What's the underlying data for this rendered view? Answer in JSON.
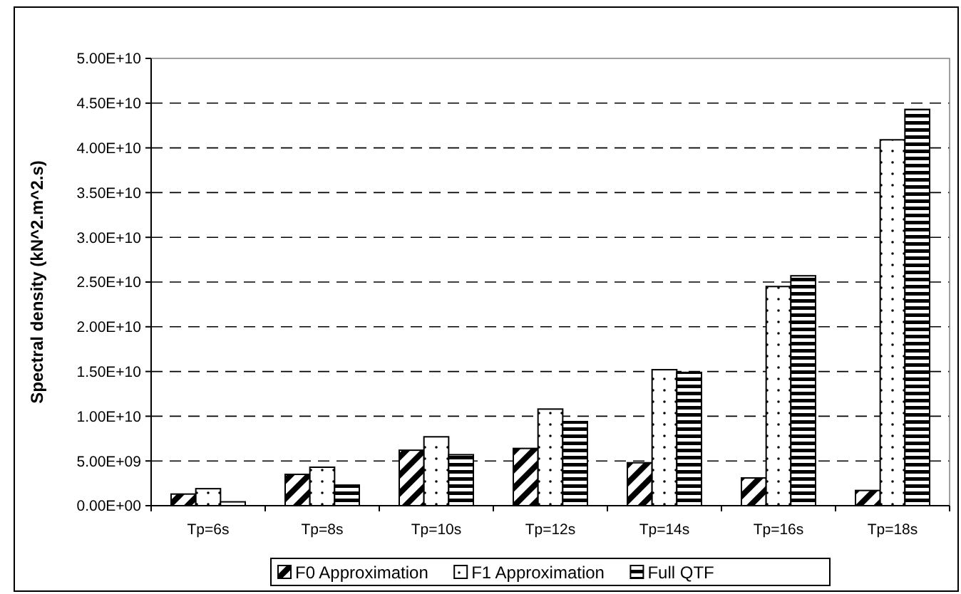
{
  "chart_data": {
    "type": "bar",
    "ylabel": "Spectral density (kN^2.m^2.s)",
    "categories": [
      "Tp=6s",
      "Tp=8s",
      "Tp=10s",
      "Tp=12s",
      "Tp=14s",
      "Tp=16s",
      "Tp=18s"
    ],
    "series": [
      {
        "name": "F0 Approximation",
        "color": "#000000",
        "values": [
          1300000000.0,
          3500000000.0,
          6200000000.0,
          6400000000.0,
          4800000000.0,
          3100000000.0,
          1700000000.0
        ]
      },
      {
        "name": "F1 Approximation",
        "color": "#000000",
        "values": [
          1900000000.0,
          4300000000.0,
          7700000000.0,
          10800000000.0,
          15200000000.0,
          24500000000.0,
          40900000000.0
        ]
      },
      {
        "name": "Full QTF",
        "color": "#000000",
        "values": [
          430000000.0,
          2300000000.0,
          5700000000.0,
          9400000000.0,
          14900000000.0,
          25700000000.0,
          44300000000.0
        ]
      }
    ],
    "ylim": [
      0,
      50000000000.0
    ],
    "yticks": [
      {
        "value": 0,
        "label": "0.00E+00"
      },
      {
        "value": 5000000000.0,
        "label": "5.00E+09"
      },
      {
        "value": 10000000000.0,
        "label": "1.00E+10"
      },
      {
        "value": 15000000000.0,
        "label": "1.50E+10"
      },
      {
        "value": 20000000000.0,
        "label": "2.00E+10"
      },
      {
        "value": 25000000000.0,
        "label": "2.50E+10"
      },
      {
        "value": 30000000000.0,
        "label": "3.00E+10"
      },
      {
        "value": 35000000000.0,
        "label": "3.50E+10"
      },
      {
        "value": 40000000000.0,
        "label": "4.00E+10"
      },
      {
        "value": 45000000000.0,
        "label": "4.50E+10"
      },
      {
        "value": 50000000000.0,
        "label": "5.00E+10"
      }
    ],
    "grid": "y",
    "legend": "bottom"
  }
}
